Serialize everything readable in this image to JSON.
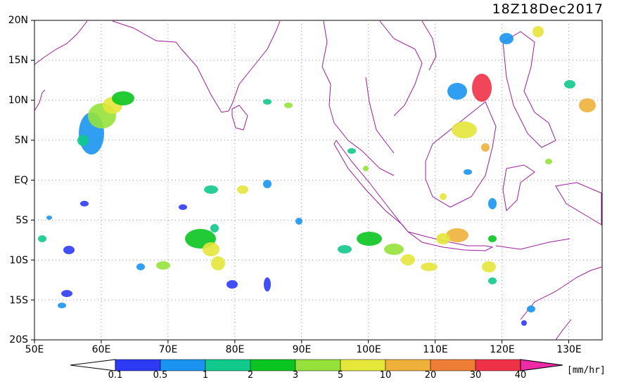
{
  "timestamp": "18Z18Dec2017",
  "lat_labels": [
    "20N",
    "15N",
    "10N",
    "5N",
    "EQ",
    "5S",
    "10S",
    "15S",
    "20S"
  ],
  "lon_labels": [
    "50E",
    "60E",
    "70E",
    "80E",
    "90E",
    "100E",
    "110E",
    "120E",
    "130E"
  ],
  "colorbar": {
    "ticks": [
      "0.1",
      "0.5",
      "1",
      "2",
      "3",
      "5",
      "10",
      "20",
      "30",
      "40"
    ],
    "colors": [
      "#ffffff",
      "#2e3bf5",
      "#1a93f0",
      "#11c98a",
      "#0ac520",
      "#96e23a",
      "#e4e63a",
      "#eeb13a",
      "#ee7d36",
      "#ef3148",
      "#ee2aa6"
    ],
    "unit": "[mm/hr]"
  },
  "map": {
    "lon_range": [
      50,
      135
    ],
    "lat_range": [
      -20,
      20
    ],
    "coastline_color": "#9a1f9a",
    "grid": true
  }
}
